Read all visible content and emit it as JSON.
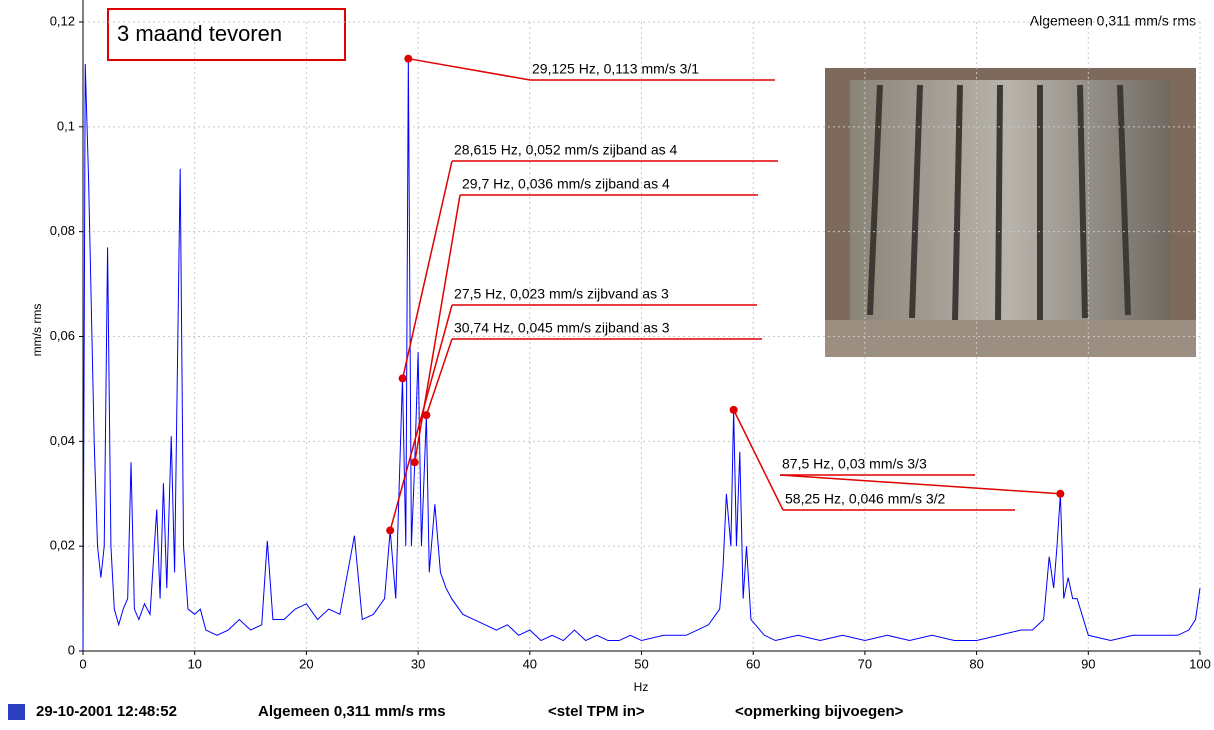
{
  "chart_data": {
    "type": "line",
    "title": "3 maand tevoren",
    "overall_label": "Algemeen 0,311 mm/s rms",
    "xlabel": "Hz",
    "ylabel": "mm/s rms",
    "color": "#0000ff",
    "grid": true,
    "xlim": [
      0,
      100
    ],
    "xticks": [
      0,
      10,
      20,
      30,
      40,
      50,
      60,
      70,
      80,
      90,
      100
    ],
    "ylim": [
      0,
      0.12
    ],
    "yticks": [
      {
        "value": 0,
        "label": "0"
      },
      {
        "value": 0.02,
        "label": "0,02"
      },
      {
        "value": 0.04,
        "label": "0,04"
      },
      {
        "value": 0.06,
        "label": "0,06"
      },
      {
        "value": 0.08,
        "label": "0,08"
      },
      {
        "value": 0.1,
        "label": "0,1"
      },
      {
        "value": 0.12,
        "label": "0,12"
      }
    ],
    "x": [
      0,
      0.2,
      0.5,
      0.8,
      1.0,
      1.3,
      1.6,
      1.9,
      2.2,
      2.5,
      2.8,
      3.2,
      3.6,
      4.0,
      4.3,
      4.6,
      5.0,
      5.5,
      6.0,
      6.6,
      6.9,
      7.2,
      7.5,
      7.9,
      8.2,
      8.7,
      9.0,
      9.4,
      10,
      10.5,
      11,
      12,
      13,
      14,
      15,
      16,
      16.5,
      17,
      18,
      19,
      20,
      21,
      22,
      23,
      24.3,
      25,
      26,
      27,
      27.5,
      28,
      28.6,
      28.9,
      29.125,
      29.4,
      29.7,
      30,
      30.3,
      30.74,
      31,
      31.5,
      32,
      32.5,
      33,
      34,
      35,
      36,
      37,
      38,
      39,
      40,
      41,
      42,
      43,
      44,
      45,
      46,
      47,
      48,
      49,
      50,
      52,
      54,
      55,
      56,
      57,
      57.3,
      57.6,
      58,
      58.25,
      58.5,
      58.8,
      59.1,
      59.4,
      59.8,
      61,
      62,
      64,
      66,
      68,
      70,
      72,
      74,
      76,
      78,
      80,
      82,
      84,
      85,
      86,
      86.5,
      86.9,
      87.2,
      87.5,
      87.8,
      88.2,
      88.6,
      89,
      90,
      92,
      94,
      96,
      98,
      99,
      99.6,
      100
    ],
    "values": [
      0,
      0.112,
      0.09,
      0.06,
      0.04,
      0.02,
      0.014,
      0.02,
      0.077,
      0.02,
      0.008,
      0.005,
      0.008,
      0.01,
      0.036,
      0.008,
      0.006,
      0.009,
      0.007,
      0.027,
      0.01,
      0.032,
      0.012,
      0.041,
      0.015,
      0.092,
      0.02,
      0.008,
      0.007,
      0.008,
      0.004,
      0.003,
      0.004,
      0.006,
      0.004,
      0.005,
      0.021,
      0.006,
      0.006,
      0.008,
      0.009,
      0.006,
      0.008,
      0.007,
      0.022,
      0.006,
      0.007,
      0.01,
      0.023,
      0.01,
      0.052,
      0.02,
      0.113,
      0.02,
      0.036,
      0.057,
      0.02,
      0.045,
      0.015,
      0.028,
      0.015,
      0.012,
      0.01,
      0.007,
      0.006,
      0.005,
      0.004,
      0.005,
      0.003,
      0.004,
      0.002,
      0.003,
      0.002,
      0.004,
      0.002,
      0.003,
      0.002,
      0.002,
      0.003,
      0.002,
      0.003,
      0.003,
      0.004,
      0.005,
      0.008,
      0.016,
      0.03,
      0.02,
      0.046,
      0.02,
      0.038,
      0.01,
      0.02,
      0.006,
      0.003,
      0.002,
      0.003,
      0.002,
      0.003,
      0.002,
      0.003,
      0.002,
      0.003,
      0.002,
      0.002,
      0.003,
      0.004,
      0.004,
      0.006,
      0.018,
      0.012,
      0.02,
      0.03,
      0.01,
      0.014,
      0.01,
      0.01,
      0.003,
      0.002,
      0.003,
      0.003,
      0.003,
      0.004,
      0.006,
      0.012
    ],
    "annotations": [
      {
        "x": 29.125,
        "y": 0.113,
        "label": "29,125 Hz, 0,113 mm/s 3/1"
      },
      {
        "x": 28.615,
        "y": 0.052,
        "label": "28,615 Hz, 0,052 mm/s zijband as 4"
      },
      {
        "x": 29.7,
        "y": 0.036,
        "label": "29,7 Hz, 0,036 mm/s zijband as 4"
      },
      {
        "x": 27.5,
        "y": 0.023,
        "label": "27,5 Hz, 0,023 mm/s zijbvand as 3"
      },
      {
        "x": 30.74,
        "y": 0.045,
        "label": "30,74 Hz, 0,045 mm/s zijband as 3"
      },
      {
        "x": 87.5,
        "y": 0.03,
        "label": "87,5 Hz, 0,03 mm/s 3/3"
      },
      {
        "x": 58.25,
        "y": 0.046,
        "label": "58,25 Hz, 0,046 mm/s 3/2"
      }
    ]
  },
  "status_bar": {
    "timestamp": "29-10-2001 12:48:52",
    "overall": "Algemeen 0,311 mm/s rms",
    "tpm": "<stel TPM in>",
    "remark": "<opmerking bijvoegen>"
  }
}
